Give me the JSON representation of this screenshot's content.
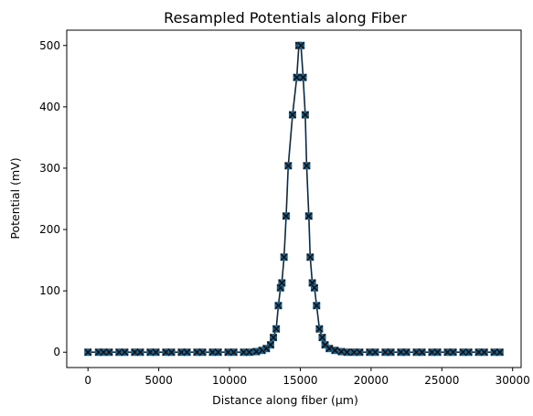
{
  "chart_data": {
    "type": "line",
    "title": "Resampled Potentials along Fiber",
    "xlabel": "Distance along fiber (µm)",
    "ylabel": "Potential (mV)",
    "xlim": [
      -1500,
      30600
    ],
    "ylim": [
      -25,
      525
    ],
    "xticks": [
      0,
      5000,
      10000,
      15000,
      20000,
      25000,
      30000
    ],
    "yticks": [
      0,
      100,
      200,
      300,
      400,
      500
    ],
    "grid": false,
    "legend": false,
    "colors": {
      "line": "#0a2a44",
      "marker": "#1f5f8b",
      "cross": "#111111"
    },
    "series": [
      {
        "marker": "square+x",
        "x": [
          0,
          750,
          1100,
          1500,
          2200,
          2600,
          3300,
          3700,
          4400,
          4800,
          5500,
          5900,
          6600,
          7000,
          7700,
          8100,
          8800,
          9200,
          9900,
          10300,
          11000,
          11400,
          11900,
          12300,
          12600,
          12900,
          13100,
          13300,
          13450,
          13600,
          13700,
          13850,
          14000,
          14150,
          14450,
          14750,
          14900,
          15050,
          15200,
          15350,
          15450,
          15600,
          15700,
          15850,
          16000,
          16150,
          16350,
          16550,
          16750,
          17050,
          17450,
          17900,
          18300,
          18800,
          19200,
          19900,
          20300,
          21000,
          21400,
          22100,
          22500,
          23200,
          23600,
          24300,
          24700,
          25400,
          25800,
          26500,
          26900,
          27600,
          28000,
          28700,
          29100
        ],
        "y": [
          0,
          0,
          0,
          0,
          0,
          0,
          0,
          0,
          0,
          0,
          0,
          0,
          0,
          0,
          0,
          0,
          0,
          0,
          0,
          0,
          0,
          0,
          1,
          3,
          6,
          12,
          24,
          38,
          76,
          105,
          113,
          155,
          222,
          304,
          387,
          448,
          500,
          500,
          448,
          387,
          304,
          222,
          155,
          113,
          105,
          76,
          38,
          24,
          12,
          6,
          3,
          1,
          0,
          0,
          0,
          0,
          0,
          0,
          0,
          0,
          0,
          0,
          0,
          0,
          0,
          0,
          0,
          0,
          0,
          0,
          0,
          0,
          0
        ]
      }
    ]
  }
}
